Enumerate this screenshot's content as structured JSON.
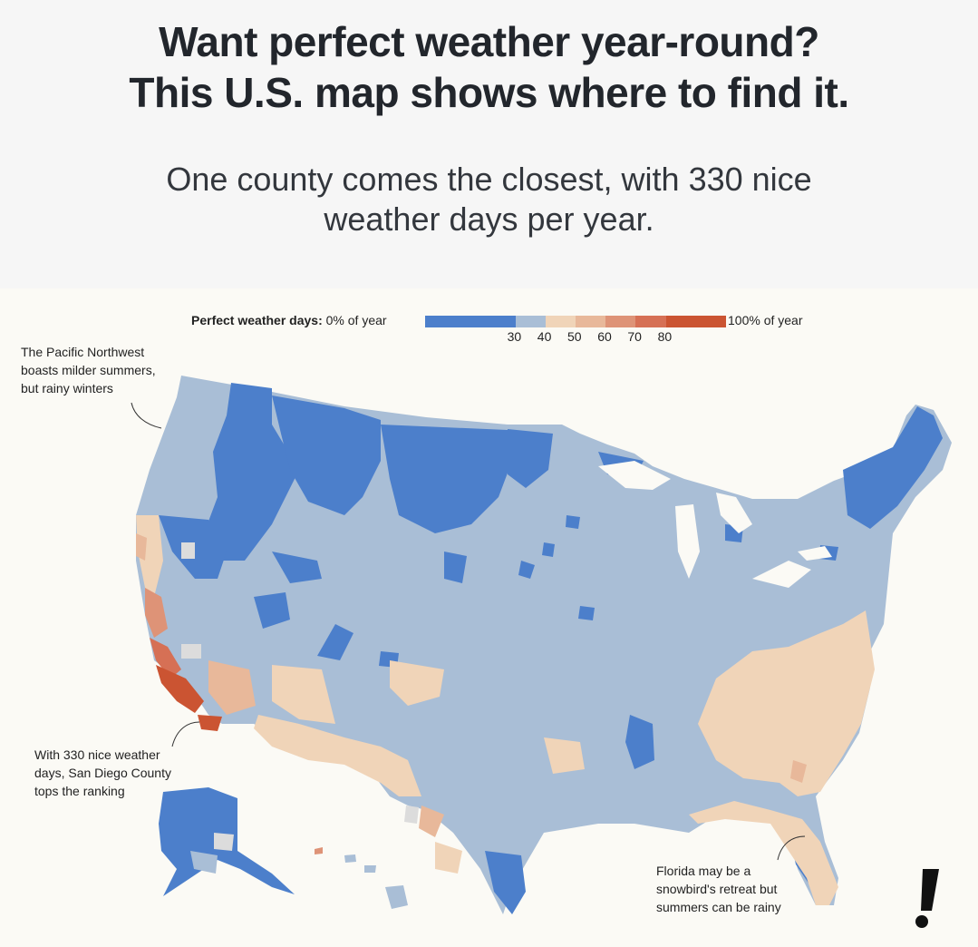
{
  "header": {
    "headline_line1": "Want perfect weather year-round?",
    "headline_line2": "This U.S. map shows where to find it.",
    "subhead_line1": "One county comes the closest, with 330 nice",
    "subhead_line2": "weather days per year."
  },
  "legend": {
    "title_bold": "Perfect weather days:",
    "start_label": "0% of year",
    "end_label": "100% of year",
    "ticks": [
      "30",
      "40",
      "50",
      "60",
      "70",
      "80"
    ],
    "bins": [
      {
        "from": 0,
        "to": 30,
        "color": "#4c7fcb"
      },
      {
        "from": 30,
        "to": 40,
        "color": "#a9bed6"
      },
      {
        "from": 40,
        "to": 50,
        "color": "#f0d4b8"
      },
      {
        "from": 50,
        "to": 60,
        "color": "#e8b89a"
      },
      {
        "from": 60,
        "to": 70,
        "color": "#de9377"
      },
      {
        "from": 70,
        "to": 80,
        "color": "#d67055"
      },
      {
        "from": 80,
        "to": 100,
        "color": "#cb5432"
      }
    ]
  },
  "annotations": {
    "pnw": [
      "The Pacific Northwest",
      "boasts milder summers,",
      "but rainy winters"
    ],
    "sandiego": [
      "With 330 nice weather",
      "days, San Diego County",
      "tops the ranking"
    ],
    "florida": [
      "Florida may be a",
      "snowbird's retreat but",
      "summers can be rainy"
    ]
  },
  "colors": {
    "low": "#4c7fcb",
    "mid": "#a9bed6",
    "warm": "#f0d4b8",
    "hot": "#cb5432",
    "panel": "#fbfaf5"
  },
  "logo_icon": "exclamation-logo-icon"
}
